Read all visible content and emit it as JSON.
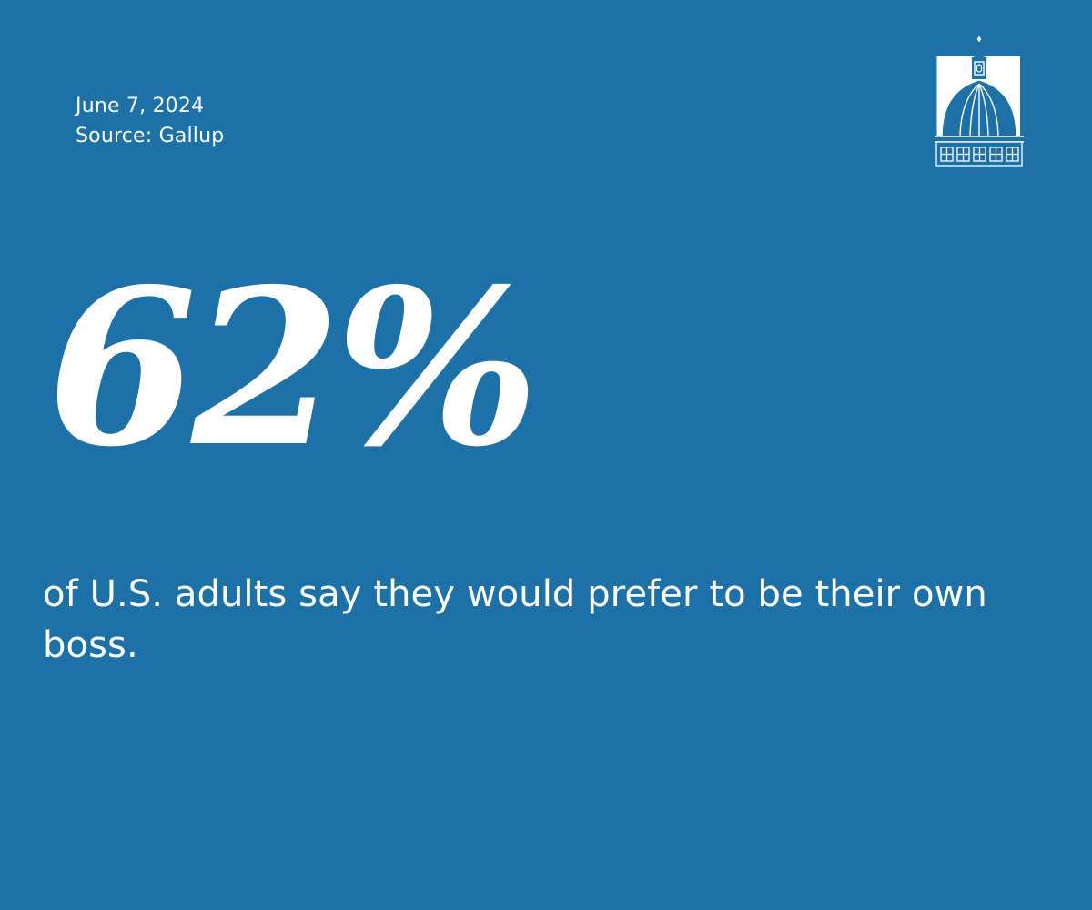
{
  "meta": {
    "date": "June 7, 2024",
    "source": "Source: Gallup"
  },
  "stat": {
    "value": "62%",
    "description": "of U.S. adults say they would prefer to be their own boss."
  },
  "logo": {
    "icon": "capitol-dome-icon"
  },
  "colors": {
    "background": "#1d71a6",
    "text": "#ffffff"
  }
}
